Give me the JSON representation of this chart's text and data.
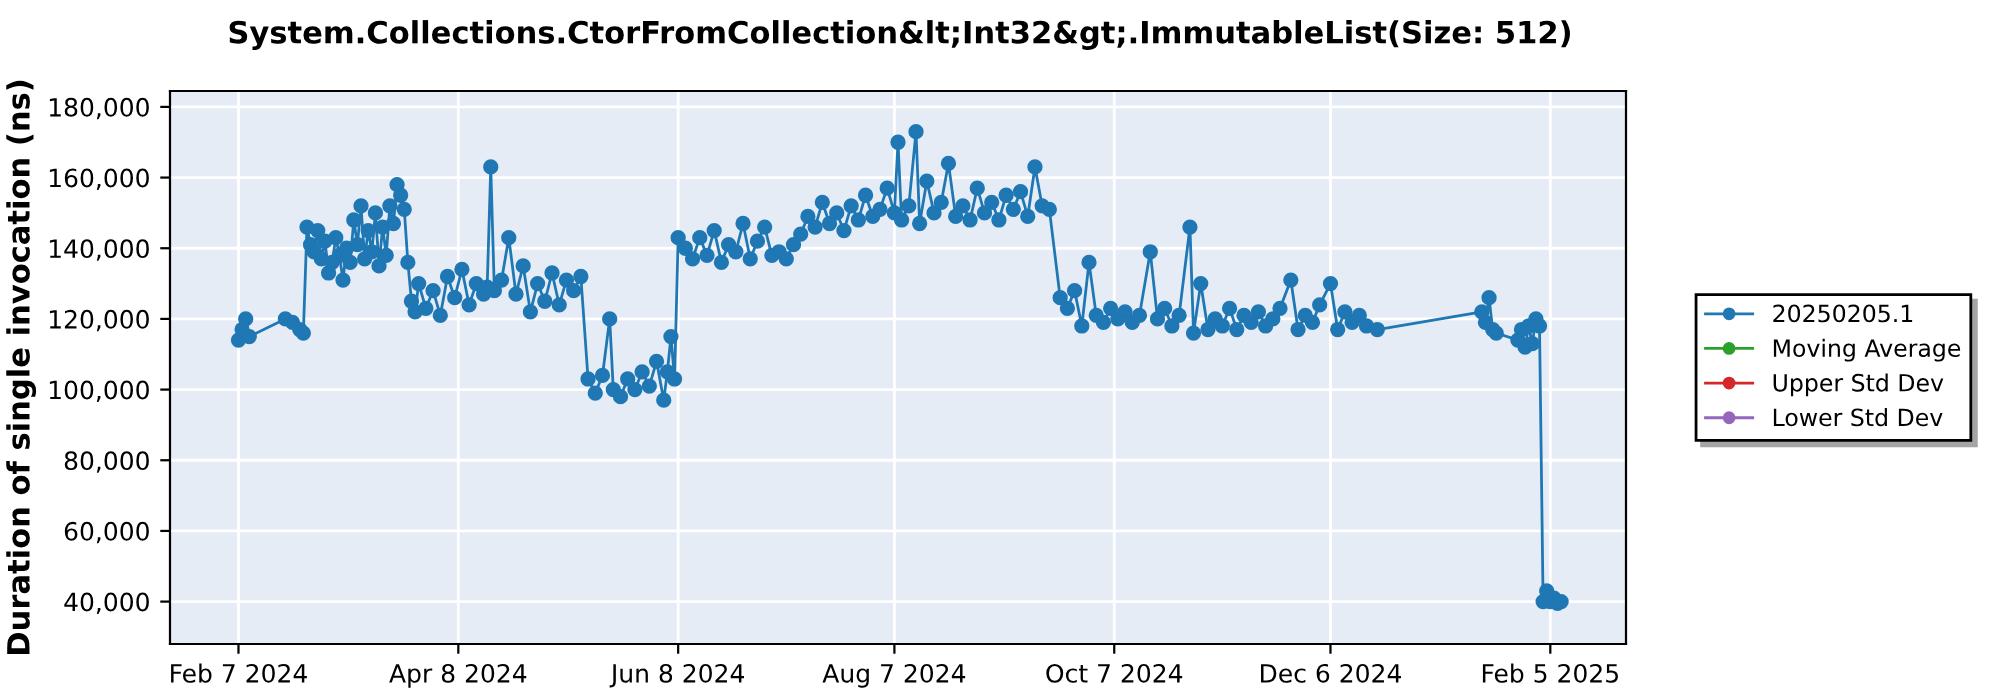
{
  "chart_data": {
    "type": "line",
    "title": "System.Collections.CtorFromCollection&lt;Int32&gt;.ImmutableList(Size: 512)",
    "ylabel": "Duration of single invocation (ns)",
    "xlim": [
      "2024-01-19",
      "2025-02-26"
    ],
    "xticks": [
      {
        "value": "2024-02-07",
        "label": "Feb 7 2024"
      },
      {
        "value": "2024-04-08",
        "label": "Apr 8 2024"
      },
      {
        "value": "2024-06-08",
        "label": "Jun 8 2024"
      },
      {
        "value": "2024-08-07",
        "label": "Aug 7 2024"
      },
      {
        "value": "2024-10-07",
        "label": "Oct 7 2024"
      },
      {
        "value": "2024-12-06",
        "label": "Dec 6 2024"
      },
      {
        "value": "2025-02-05",
        "label": "Feb 5 2025"
      }
    ],
    "ylim": [
      28000,
      184500
    ],
    "yticks": [
      {
        "value": 40000,
        "label": "40,000"
      },
      {
        "value": 60000,
        "label": "60,000"
      },
      {
        "value": 80000,
        "label": "80,000"
      },
      {
        "value": 100000,
        "label": "100,000"
      },
      {
        "value": 120000,
        "label": "120,000"
      },
      {
        "value": 140000,
        "label": "140,000"
      },
      {
        "value": 160000,
        "label": "160,000"
      },
      {
        "value": 180000,
        "label": "180,000"
      }
    ],
    "grid": true,
    "legend": "right",
    "marker": "circle",
    "line_style": "solid",
    "series": [
      {
        "name": "20250205.1",
        "color": "#1f77b4",
        "x": [
          "2024-02-07",
          "2024-02-08",
          "2024-02-09",
          "2024-02-10",
          "2024-02-20",
          "2024-02-22",
          "2024-02-24",
          "2024-02-25",
          "2024-02-26",
          "2024-02-27",
          "2024-02-28",
          "2024-02-29",
          "2024-03-01",
          "2024-03-02",
          "2024-03-03",
          "2024-03-04",
          "2024-03-05",
          "2024-03-06",
          "2024-03-07",
          "2024-03-08",
          "2024-03-09",
          "2024-03-10",
          "2024-03-11",
          "2024-03-12",
          "2024-03-13",
          "2024-03-14",
          "2024-03-15",
          "2024-03-16",
          "2024-03-17",
          "2024-03-18",
          "2024-03-19",
          "2024-03-20",
          "2024-03-21",
          "2024-03-22",
          "2024-03-23",
          "2024-03-24",
          "2024-03-25",
          "2024-03-26",
          "2024-03-27",
          "2024-03-28",
          "2024-03-30",
          "2024-04-01",
          "2024-04-03",
          "2024-04-05",
          "2024-04-07",
          "2024-04-09",
          "2024-04-11",
          "2024-04-13",
          "2024-04-15",
          "2024-04-16",
          "2024-04-17",
          "2024-04-18",
          "2024-04-20",
          "2024-04-22",
          "2024-04-24",
          "2024-04-26",
          "2024-04-28",
          "2024-04-30",
          "2024-05-02",
          "2024-05-04",
          "2024-05-06",
          "2024-05-08",
          "2024-05-10",
          "2024-05-12",
          "2024-05-14",
          "2024-05-16",
          "2024-05-18",
          "2024-05-20",
          "2024-05-21",
          "2024-05-23",
          "2024-05-25",
          "2024-05-27",
          "2024-05-29",
          "2024-05-31",
          "2024-06-02",
          "2024-06-04",
          "2024-06-05",
          "2024-06-06",
          "2024-06-07",
          "2024-06-08",
          "2024-06-10",
          "2024-06-12",
          "2024-06-14",
          "2024-06-16",
          "2024-06-18",
          "2024-06-20",
          "2024-06-22",
          "2024-06-24",
          "2024-06-26",
          "2024-06-28",
          "2024-06-30",
          "2024-07-02",
          "2024-07-04",
          "2024-07-06",
          "2024-07-08",
          "2024-07-10",
          "2024-07-12",
          "2024-07-14",
          "2024-07-16",
          "2024-07-18",
          "2024-07-20",
          "2024-07-22",
          "2024-07-24",
          "2024-07-26",
          "2024-07-28",
          "2024-07-30",
          "2024-08-01",
          "2024-08-03",
          "2024-08-05",
          "2024-08-07",
          "2024-08-08",
          "2024-08-09",
          "2024-08-11",
          "2024-08-13",
          "2024-08-14",
          "2024-08-16",
          "2024-08-18",
          "2024-08-20",
          "2024-08-22",
          "2024-08-24",
          "2024-08-26",
          "2024-08-28",
          "2024-08-30",
          "2024-09-01",
          "2024-09-03",
          "2024-09-05",
          "2024-09-07",
          "2024-09-09",
          "2024-09-11",
          "2024-09-13",
          "2024-09-15",
          "2024-09-17",
          "2024-09-19",
          "2024-09-22",
          "2024-09-24",
          "2024-09-26",
          "2024-09-28",
          "2024-09-30",
          "2024-10-02",
          "2024-10-04",
          "2024-10-06",
          "2024-10-08",
          "2024-10-10",
          "2024-10-12",
          "2024-10-14",
          "2024-10-17",
          "2024-10-19",
          "2024-10-21",
          "2024-10-23",
          "2024-10-25",
          "2024-10-28",
          "2024-10-29",
          "2024-10-31",
          "2024-11-02",
          "2024-11-04",
          "2024-11-06",
          "2024-11-08",
          "2024-11-10",
          "2024-11-12",
          "2024-11-14",
          "2024-11-16",
          "2024-11-18",
          "2024-11-20",
          "2024-11-22",
          "2024-11-25",
          "2024-11-27",
          "2024-11-29",
          "2024-12-01",
          "2024-12-03",
          "2024-12-06",
          "2024-12-08",
          "2024-12-10",
          "2024-12-12",
          "2024-12-14",
          "2024-12-16",
          "2024-12-19",
          "2025-01-17",
          "2025-01-18",
          "2025-01-19",
          "2025-01-20",
          "2025-01-21",
          "2025-01-27",
          "2025-01-28",
          "2025-01-29",
          "2025-01-30",
          "2025-01-31",
          "2025-02-01",
          "2025-02-02",
          "2025-02-03",
          "2025-02-04",
          "2025-02-05",
          "2025-02-06",
          "2025-02-07",
          "2025-02-08"
        ],
        "values": [
          114000,
          117000,
          120000,
          115000,
          120000,
          119000,
          117000,
          116000,
          146000,
          141000,
          139000,
          145000,
          137000,
          142000,
          133000,
          136000,
          143000,
          138000,
          131000,
          140000,
          136000,
          148000,
          141000,
          152000,
          137000,
          145000,
          139000,
          150000,
          135000,
          146000,
          138000,
          152000,
          147000,
          158000,
          155000,
          151000,
          136000,
          125000,
          122000,
          130000,
          123000,
          128000,
          121000,
          132000,
          126000,
          134000,
          124000,
          130000,
          127000,
          129000,
          163000,
          128000,
          131000,
          143000,
          127000,
          135000,
          122000,
          130000,
          125000,
          133000,
          124000,
          131000,
          128000,
          132000,
          103000,
          99000,
          104000,
          120000,
          100000,
          98000,
          103000,
          100000,
          105000,
          101000,
          108000,
          97000,
          105000,
          115000,
          103000,
          143000,
          140000,
          137000,
          143000,
          138000,
          145000,
          136000,
          141000,
          139000,
          147000,
          137000,
          142000,
          146000,
          138000,
          139000,
          137000,
          141000,
          144000,
          149000,
          146000,
          153000,
          147000,
          150000,
          145000,
          152000,
          148000,
          155000,
          149000,
          151000,
          157000,
          150000,
          170000,
          148000,
          152000,
          173000,
          147000,
          159000,
          150000,
          153000,
          164000,
          149000,
          152000,
          148000,
          157000,
          150000,
          153000,
          148000,
          155000,
          151000,
          156000,
          149000,
          163000,
          152000,
          151000,
          126000,
          123000,
          128000,
          118000,
          136000,
          121000,
          119000,
          123000,
          120000,
          122000,
          119000,
          121000,
          139000,
          120000,
          123000,
          118000,
          121000,
          146000,
          116000,
          130000,
          117000,
          120000,
          118000,
          123000,
          117000,
          121000,
          119000,
          122000,
          118000,
          120000,
          123000,
          131000,
          117000,
          121000,
          119000,
          124000,
          130000,
          117000,
          122000,
          119000,
          121000,
          118000,
          117000,
          122000,
          119000,
          126000,
          117000,
          116000,
          114000,
          117000,
          112000,
          118000,
          113000,
          120000,
          118000,
          40000,
          43000,
          40000,
          41000,
          39500,
          40000
        ]
      },
      {
        "name": "Moving Average",
        "color": "#2ca02c"
      },
      {
        "name": "Upper Std Dev",
        "color": "#d62728"
      },
      {
        "name": "Lower Std Dev",
        "color": "#9467bd"
      }
    ]
  }
}
